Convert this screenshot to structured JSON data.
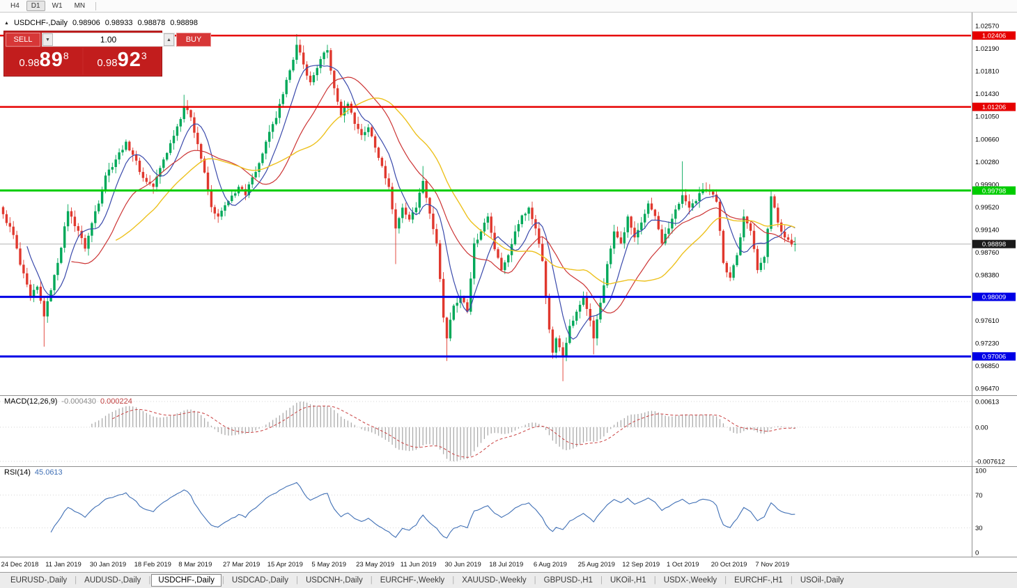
{
  "toolbar": {
    "timeframes": [
      "H4",
      "D1",
      "W1",
      "MN"
    ],
    "active_timeframe": "D1"
  },
  "header": {
    "expand_icon": "▲",
    "symbol": "USDCHF-,Daily",
    "open": "0.98906",
    "high": "0.98933",
    "low": "0.98878",
    "close": "0.98898"
  },
  "trade_panel": {
    "sell_label": "SELL",
    "buy_label": "BUY",
    "volume": "1.00",
    "spinner_down": "▼",
    "spinner_up": "▲",
    "sell_price_big": "0.98",
    "sell_price_pips": "89",
    "sell_price_pipette": "8",
    "buy_price_big": "0.98",
    "buy_price_pips": "92",
    "buy_price_pipette": "3"
  },
  "indicators": {
    "macd_label": "MACD(12,26,9)",
    "macd_value": "-0.000430",
    "macd_signal_value": "0.000224",
    "rsi_label": "RSI(14)",
    "rsi_value": "45.0613"
  },
  "tabs": [
    "EURUSD-,Daily",
    "AUDUSD-,Daily",
    "USDCHF-,Daily",
    "USDCAD-,Daily",
    "USDCNH-,Daily",
    "EURCHF-,Weekly",
    "XAUUSD-,Weekly",
    "GBPUSD-,H1",
    "UKOil-,H1",
    "USDX-,Weekly",
    "EURCHF-,H1",
    "USOil-,Daily"
  ],
  "active_tab_index": 2,
  "tab_separator": "|",
  "chart_data": {
    "type": "candlestick",
    "symbol": "USDCHF",
    "timeframe": "Daily",
    "bars": 233,
    "price_range": [
      0.964,
      1.027
    ],
    "price_axis_ticks": [
      "1.02570",
      "1.02190",
      "1.01810",
      "1.01430",
      "1.01050",
      "1.00660",
      "1.00280",
      "0.99900",
      "0.99520",
      "0.99140",
      "0.98760",
      "0.98380",
      "0.97610",
      "0.97230",
      "0.96850",
      "0.96470"
    ],
    "levels": [
      {
        "value": "1.02406",
        "price": 1.02406,
        "color": "#e60000",
        "width": 2.5
      },
      {
        "value": "1.01206",
        "price": 1.01206,
        "color": "#e60000",
        "width": 2.5
      },
      {
        "value": "0.99798",
        "price": 0.99798,
        "color": "#00cc00",
        "width": 3
      },
      {
        "value": "0.98009",
        "price": 0.98009,
        "color": "#0000e6",
        "width": 3
      },
      {
        "value": "0.97006",
        "price": 0.97006,
        "color": "#0000e6",
        "width": 3
      }
    ],
    "current_price": {
      "value": "0.98898",
      "price": 0.98898,
      "badge_color": "#1a1a1a",
      "line_color": "#b4b4b4"
    },
    "candle_up_color": "#00a859",
    "candle_down_color": "#e0382e",
    "noise_amplitude": 0.0016,
    "close_path_anchors": [
      [
        0,
        0.994
      ],
      [
        3,
        0.9905
      ],
      [
        5,
        0.9855
      ],
      [
        8,
        0.98
      ],
      [
        10,
        0.9818
      ],
      [
        12,
        0.9768
      ],
      [
        14,
        0.9812
      ],
      [
        16,
        0.9858
      ],
      [
        19,
        0.9945
      ],
      [
        22,
        0.9912
      ],
      [
        24,
        0.9882
      ],
      [
        26,
        0.9925
      ],
      [
        30,
        1.0005
      ],
      [
        33,
        1.0032
      ],
      [
        36,
        1.0062
      ],
      [
        38,
        1.004
      ],
      [
        41,
        1.0001
      ],
      [
        44,
        0.9986
      ],
      [
        47,
        1.0032
      ],
      [
        50,
        1.0072
      ],
      [
        53,
        1.012
      ],
      [
        55,
        1.0103
      ],
      [
        57,
        1.0058
      ],
      [
        59,
        1.001
      ],
      [
        61,
        0.9952
      ],
      [
        63,
        0.9936
      ],
      [
        66,
        0.9962
      ],
      [
        69,
        0.9986
      ],
      [
        71,
        0.9972
      ],
      [
        73,
        1.0002
      ],
      [
        75,
        1.0026
      ],
      [
        77,
        1.0062
      ],
      [
        80,
        1.0102
      ],
      [
        82,
        1.0142
      ],
      [
        84,
        1.0182
      ],
      [
        86,
        1.0225
      ],
      [
        88,
        1.0192
      ],
      [
        90,
        1.0162
      ],
      [
        92,
        1.0186
      ],
      [
        94,
        1.0212
      ],
      [
        95,
        1.0216
      ],
      [
        97,
        1.0152
      ],
      [
        99,
        1.0106
      ],
      [
        101,
        1.0126
      ],
      [
        103,
        1.0092
      ],
      [
        105,
        1.0073
      ],
      [
        107,
        1.0086
      ],
      [
        109,
        1.0052
      ],
      [
        111,
        1.0021
      ],
      [
        113,
        0.9986
      ],
      [
        115,
        0.9916
      ],
      [
        117,
        0.9951
      ],
      [
        119,
        0.9931
      ],
      [
        121,
        0.9951
      ],
      [
        123,
        0.9996
      ],
      [
        125,
        0.9941
      ],
      [
        127,
        0.9891
      ],
      [
        129,
        0.9766
      ],
      [
        130,
        0.9731
      ],
      [
        132,
        0.9786
      ],
      [
        134,
        0.9801
      ],
      [
        136,
        0.9776
      ],
      [
        138,
        0.9891
      ],
      [
        140,
        0.9911
      ],
      [
        142,
        0.9936
      ],
      [
        144,
        0.9881
      ],
      [
        146,
        0.9846
      ],
      [
        148,
        0.9871
      ],
      [
        150,
        0.9911
      ],
      [
        152,
        0.9938
      ],
      [
        154,
        0.9951
      ],
      [
        156,
        0.9916
      ],
      [
        158,
        0.9861
      ],
      [
        160,
        0.9746
      ],
      [
        161,
        0.9707
      ],
      [
        162,
        0.9731
      ],
      [
        163,
        0.9716
      ],
      [
        164,
        0.9701
      ],
      [
        166,
        0.9752
      ],
      [
        168,
        0.9776
      ],
      [
        170,
        0.9801
      ],
      [
        172,
        0.9761
      ],
      [
        173,
        0.9731
      ],
      [
        175,
        0.9791
      ],
      [
        177,
        0.9856
      ],
      [
        179,
        0.9911
      ],
      [
        181,
        0.9891
      ],
      [
        183,
        0.9936
      ],
      [
        185,
        0.9901
      ],
      [
        187,
        0.9926
      ],
      [
        189,
        0.9958
      ],
      [
        191,
        0.9937
      ],
      [
        193,
        0.9891
      ],
      [
        195,
        0.9916
      ],
      [
        197,
        0.9948
      ],
      [
        199,
        0.9972
      ],
      [
        201,
        0.9951
      ],
      [
        203,
        0.9962
      ],
      [
        205,
        0.9982
      ],
      [
        207,
        0.9978
      ],
      [
        209,
        0.9961
      ],
      [
        211,
        0.9858
      ],
      [
        213,
        0.9833
      ],
      [
        215,
        0.9871
      ],
      [
        217,
        0.9936
      ],
      [
        219,
        0.9912
      ],
      [
        221,
        0.9846
      ],
      [
        223,
        0.9868
      ],
      [
        225,
        0.997
      ],
      [
        227,
        0.9926
      ],
      [
        229,
        0.9901
      ],
      [
        231,
        0.9889
      ],
      [
        232,
        0.98898
      ]
    ],
    "wick_extremes": [
      {
        "i": 12,
        "low": 0.9717
      },
      {
        "i": 53,
        "high": 1.0141
      },
      {
        "i": 86,
        "high": 1.0243
      },
      {
        "i": 115,
        "low": 0.9856
      },
      {
        "i": 123,
        "high": 1.0021
      },
      {
        "i": 130,
        "low": 0.9693
      },
      {
        "i": 164,
        "low": 0.9659
      },
      {
        "i": 173,
        "low": 0.9704
      },
      {
        "i": 199,
        "high": 1.0029
      },
      {
        "i": 225,
        "high": 0.998
      }
    ],
    "moving_averages": [
      {
        "period": 8,
        "color": "#3949ab",
        "width": 1.2
      },
      {
        "period": 21,
        "color": "#cc3333",
        "width": 1.2
      },
      {
        "period": 34,
        "color": "#edc11d",
        "width": 1.4
      }
    ],
    "macd": {
      "fast": 12,
      "slow": 26,
      "signal": 9,
      "axis_labels": [
        "0.00613",
        "0.00",
        "-0.007612"
      ],
      "hist_color": "#ababab",
      "signal_color": "#c94040"
    },
    "rsi": {
      "period": 14,
      "axis_labels": [
        "100",
        "70",
        "30",
        "0"
      ],
      "grid_levels": [
        70,
        30
      ],
      "color": "#3f6fb5"
    },
    "date_labels": [
      {
        "text": "24 Dec 2018",
        "bar": 0
      },
      {
        "text": "11 Jan 2019",
        "bar": 13
      },
      {
        "text": "30 Jan 2019",
        "bar": 26
      },
      {
        "text": "18 Feb 2019",
        "bar": 39
      },
      {
        "text": "8 Mar 2019",
        "bar": 52
      },
      {
        "text": "27 Mar 2019",
        "bar": 65
      },
      {
        "text": "15 Apr 2019",
        "bar": 78
      },
      {
        "text": "5 May 2019",
        "bar": 91
      },
      {
        "text": "23 May 2019",
        "bar": 104
      },
      {
        "text": "11 Jun 2019",
        "bar": 117
      },
      {
        "text": "30 Jun 2019",
        "bar": 130
      },
      {
        "text": "18 Jul 2019",
        "bar": 143
      },
      {
        "text": "6 Aug 2019",
        "bar": 156
      },
      {
        "text": "25 Aug 2019",
        "bar": 169
      },
      {
        "text": "12 Sep 2019",
        "bar": 182
      },
      {
        "text": "1 Oct 2019",
        "bar": 195
      },
      {
        "text": "20 Oct 2019",
        "bar": 208
      },
      {
        "text": "7 Nov 2019",
        "bar": 221
      }
    ]
  }
}
